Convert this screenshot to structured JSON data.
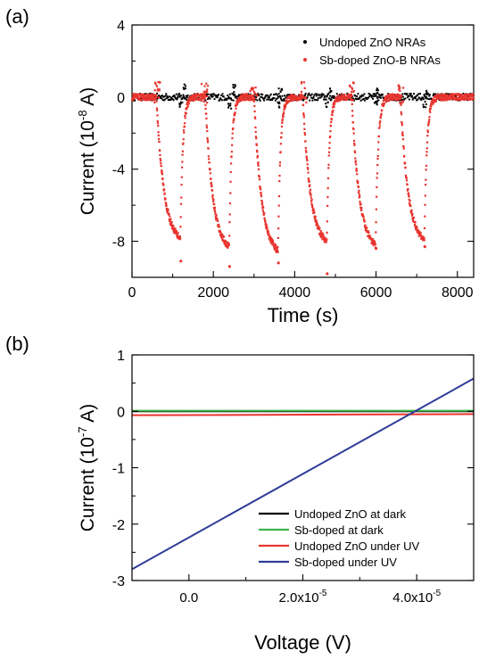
{
  "chart_data": [
    {
      "panel_label": "(a)",
      "type": "scatter",
      "xlabel": "Time (s)",
      "ylabel": "Current (10",
      "ylabel_exp": "-8",
      "ylabel_unit": " A)",
      "xlim": [
        0,
        8400
      ],
      "ylim": [
        -10,
        4
      ],
      "xticks": [
        0,
        2000,
        4000,
        6000,
        8000
      ],
      "yticks": [
        4,
        0,
        -4,
        -8
      ],
      "grid": false,
      "legend_position": "top-right",
      "series": [
        {
          "name": "Undoped ZnO NRAs",
          "color": "#000000",
          "baseline": 0,
          "noise": 0.2,
          "spikes": [
            [
              1300,
              0.8
            ],
            [
              2500,
              0.7
            ],
            [
              3650,
              0.6
            ],
            [
              4880,
              0.5
            ],
            [
              6050,
              0.5
            ],
            [
              7250,
              0.4
            ],
            [
              1200,
              -0.6
            ],
            [
              2400,
              -0.7
            ],
            [
              3600,
              -0.7
            ],
            [
              4800,
              -0.6
            ],
            [
              6000,
              -0.5
            ],
            [
              7200,
              -0.6
            ]
          ]
        },
        {
          "name": "Sb-doped ZnO-B NRAs",
          "color": "#e8352f",
          "cycles": [
            {
              "on": 600,
              "off": 1190,
              "min": -7.8
            },
            {
              "on": 1800,
              "off": 2390,
              "min": -8.3
            },
            {
              "on": 3000,
              "off": 3590,
              "min": -8.5
            },
            {
              "on": 4200,
              "off": 4790,
              "min": -8.0
            },
            {
              "on": 5400,
              "off": 5990,
              "min": -8.2
            },
            {
              "on": 6600,
              "off": 7190,
              "min": -7.9
            }
          ],
          "peak_outliers": [
            [
              1200,
              -9.1
            ],
            [
              2400,
              -9.4
            ],
            [
              3600,
              -9.2
            ],
            [
              4800,
              -9.8
            ],
            [
              6000,
              -8.4
            ],
            [
              7200,
              -8.3
            ]
          ]
        }
      ]
    },
    {
      "panel_label": "(b)",
      "type": "line",
      "xlabel": "Voltage (V)",
      "ylabel": "Current (10",
      "ylabel_exp": "-7",
      "ylabel_unit": " A)",
      "xlim": [
        -1e-05,
        5e-05
      ],
      "ylim": [
        -3,
        1
      ],
      "xticks": [
        0,
        2e-05,
        4e-05
      ],
      "xtick_labels": [
        {
          "mant": "0.0",
          "exp": ""
        },
        {
          "mant": "2.0x10",
          "exp": "-5"
        },
        {
          "mant": "4.0x10",
          "exp": "-5"
        }
      ],
      "yticks": [
        1,
        0,
        -1,
        -2,
        -3
      ],
      "grid": false,
      "legend_position": "bottom-right",
      "series": [
        {
          "name": "Undoped ZnO at dark",
          "color": "#000000",
          "x": [
            -1e-05,
            5e-05
          ],
          "y": [
            0.0,
            0.0
          ]
        },
        {
          "name": "Sb-doped at dark",
          "color": "#3db54a",
          "x": [
            -1e-05,
            5e-05
          ],
          "y": [
            0.01,
            0.01
          ]
        },
        {
          "name": "Undoped ZnO under UV",
          "color": "#e8352f",
          "x": [
            -1e-05,
            5e-05
          ],
          "y": [
            -0.07,
            -0.05
          ]
        },
        {
          "name": "Sb-doped under UV",
          "color": "#2e3d98",
          "x": [
            -1e-05,
            5e-05
          ],
          "y": [
            -2.8,
            0.58
          ]
        }
      ]
    }
  ]
}
